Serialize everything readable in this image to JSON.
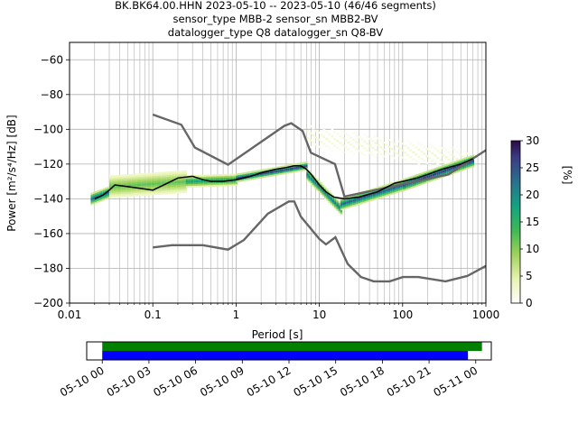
{
  "title": {
    "line1": "BK.BK64.00.HHN   2023-05-10 -- 2023-05-10  (46/46 segments)",
    "line2": "sensor_type MBB-2 sensor_sn MBB2-BV",
    "line3": "datalogger_type Q8 datalogger_sn Q8-BV"
  },
  "chart_data": [
    {
      "type": "heatmap",
      "xlabel": "Period [s]",
      "ylabel": "Power [m²/s⁴/Hz] [dB]",
      "xscale": "log",
      "xlim": [
        0.01,
        1000
      ],
      "ylim": [
        -200,
        -50
      ],
      "xticks": [
        {
          "value": 0.01,
          "label": "0.01"
        },
        {
          "value": 0.1,
          "label": "0.1"
        },
        {
          "value": 1,
          "label": "1"
        },
        {
          "value": 10,
          "label": "10"
        },
        {
          "value": 100,
          "label": "100"
        },
        {
          "value": 1000,
          "label": "1000"
        }
      ],
      "yticks": [
        {
          "value": -60,
          "label": "−60"
        },
        {
          "value": -80,
          "label": "−80"
        },
        {
          "value": -100,
          "label": "−100"
        },
        {
          "value": -120,
          "label": "−120"
        },
        {
          "value": -140,
          "label": "−140"
        },
        {
          "value": -160,
          "label": "−160"
        },
        {
          "value": -180,
          "label": "−180"
        },
        {
          "value": -200,
          "label": "−200"
        }
      ],
      "grid": true,
      "colorbar": {
        "label": "[%]",
        "range": [
          0,
          30
        ],
        "ticks": [
          {
            "value": 0,
            "label": "0"
          },
          {
            "value": 5,
            "label": "5"
          },
          {
            "value": 10,
            "label": "10"
          },
          {
            "value": 15,
            "label": "15"
          },
          {
            "value": 20,
            "label": "20"
          },
          {
            "value": 25,
            "label": "25"
          },
          {
            "value": 30,
            "label": "30"
          }
        ]
      },
      "mean_curve": [
        [
          0.02,
          -140
        ],
        [
          0.025,
          -138
        ],
        [
          0.03,
          -135
        ],
        [
          0.035,
          -132
        ],
        [
          0.05,
          -133
        ],
        [
          0.07,
          -134
        ],
        [
          0.1,
          -135
        ],
        [
          0.15,
          -131
        ],
        [
          0.2,
          -128
        ],
        [
          0.3,
          -127
        ],
        [
          0.4,
          -129
        ],
        [
          0.5,
          -130
        ],
        [
          0.7,
          -130
        ],
        [
          1,
          -129
        ],
        [
          1.5,
          -127
        ],
        [
          2,
          -125
        ],
        [
          3,
          -123
        ],
        [
          4,
          -122
        ],
        [
          5,
          -121
        ],
        [
          6,
          -121
        ],
        [
          7,
          -123
        ],
        [
          8,
          -126
        ],
        [
          10,
          -132
        ],
        [
          12,
          -136
        ],
        [
          15,
          -139
        ],
        [
          20,
          -140
        ],
        [
          30,
          -139
        ],
        [
          50,
          -136
        ],
        [
          80,
          -131
        ],
        [
          100,
          -130
        ],
        [
          150,
          -128
        ],
        [
          200,
          -126
        ],
        [
          300,
          -123
        ],
        [
          500,
          -120
        ],
        [
          700,
          -117
        ]
      ],
      "noise_model_high": [
        [
          0.1,
          -91.5
        ],
        [
          0.22,
          -97.4
        ],
        [
          0.32,
          -110.5
        ],
        [
          0.8,
          -120.4
        ],
        [
          3.8,
          -98.0
        ],
        [
          4.6,
          -96.5
        ],
        [
          6.3,
          -101.0
        ],
        [
          7.9,
          -113.5
        ],
        [
          15.4,
          -120.0
        ],
        [
          20,
          -138.7
        ],
        [
          354.8,
          -126.0
        ],
        [
          1000,
          -112.0
        ]
      ],
      "noise_model_low": [
        [
          0.1,
          -168.0
        ],
        [
          0.17,
          -166.7
        ],
        [
          0.4,
          -166.7
        ],
        [
          0.8,
          -169.2
        ],
        [
          1.24,
          -163.7
        ],
        [
          2.4,
          -148.6
        ],
        [
          4.3,
          -141.5
        ],
        [
          5.0,
          -141.5
        ],
        [
          6.0,
          -150.2
        ],
        [
          10,
          -163.1
        ],
        [
          12,
          -166.2
        ],
        [
          15.6,
          -162.1
        ],
        [
          21.9,
          -177.5
        ],
        [
          31.6,
          -185.0
        ],
        [
          45,
          -187.5
        ],
        [
          70,
          -187.5
        ],
        [
          101,
          -185.0
        ],
        [
          154,
          -185.0
        ],
        [
          328,
          -187.5
        ],
        [
          600,
          -184.4
        ],
        [
          1000,
          -178.6
        ]
      ],
      "pdf_bands": [
        {
          "pmin": 0.018,
          "pmax": 0.03,
          "center": [
            -140,
            -136
          ],
          "halfwidth": 3,
          "level": 24
        },
        {
          "pmin": 0.03,
          "pmax": 0.25,
          "center": [
            -133,
            -130
          ],
          "halfwidth": 6,
          "level": 12
        },
        {
          "pmin": 0.25,
          "pmax": 1,
          "center": [
            -130,
            -129
          ],
          "halfwidth": 3,
          "level": 18
        },
        {
          "pmin": 1,
          "pmax": 7,
          "center": [
            -128,
            -121
          ],
          "halfwidth": 2,
          "level": 26
        },
        {
          "pmin": 7,
          "pmax": 18,
          "center": [
            -126,
            -146
          ],
          "halfwidth": 3,
          "level": 22
        },
        {
          "pmin": 18,
          "pmax": 100,
          "center": [
            -143,
            -132
          ],
          "halfwidth": 3,
          "level": 24
        },
        {
          "pmin": 100,
          "pmax": 700,
          "center": [
            -132,
            -118
          ],
          "halfwidth": 3,
          "level": 27
        }
      ],
      "scatter_band": {
        "pmin": 7,
        "pmax": 600,
        "center": [
          -104,
          -118
        ],
        "halfwidth": 6,
        "level": 3
      }
    },
    {
      "type": "bar",
      "description_source": "data coverage timeline",
      "xlabel": "",
      "xscale": "time",
      "xlim": [
        -1,
        25
      ],
      "xticks": [
        {
          "value": 0,
          "label": "05-10 00"
        },
        {
          "value": 3,
          "label": "05-10 03"
        },
        {
          "value": 6,
          "label": "05-10 06"
        },
        {
          "value": 9,
          "label": "05-10 09"
        },
        {
          "value": 12,
          "label": "05-10 12"
        },
        {
          "value": 15,
          "label": "05-10 15"
        },
        {
          "value": 18,
          "label": "05-10 18"
        },
        {
          "value": 21,
          "label": "05-10 21"
        },
        {
          "value": 24,
          "label": "05-11 00"
        }
      ],
      "bars": [
        {
          "start": 0,
          "end": 24.4,
          "color": "#008000"
        },
        {
          "start": 0,
          "end": 23.5,
          "color": "#0000ff"
        }
      ]
    }
  ]
}
